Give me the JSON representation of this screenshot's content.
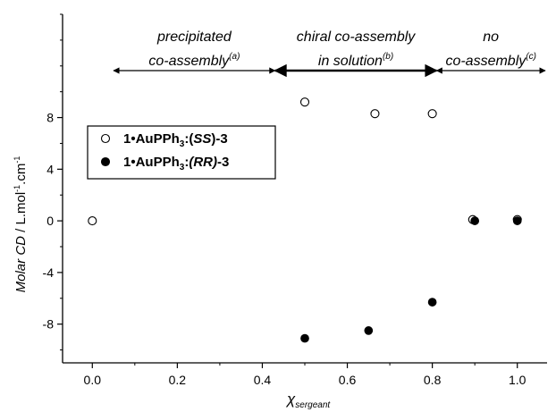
{
  "chart_data": {
    "type": "scatter",
    "xlim": [
      -0.07,
      1.07
    ],
    "ylim": [
      -11,
      16
    ],
    "x_ticks": [
      0.0,
      0.2,
      0.4,
      0.6,
      0.8,
      1.0
    ],
    "x_tick_labels": [
      "0.0",
      "0.2",
      "0.4",
      "0.6",
      "0.8",
      "1.0"
    ],
    "y_ticks": [
      -8,
      -4,
      0,
      4,
      8
    ],
    "y_tick_labels": [
      "-8",
      "-4",
      "0",
      "4",
      "8"
    ],
    "y_minor_step": 2,
    "x_minor_step": 0.1,
    "xlabel_main": "χ",
    "xlabel_sub": "sergeant",
    "ylabel_italic": "Molar CD",
    "ylabel_rest": " / L.mol",
    "ylabel_sup1": "-1",
    "ylabel_mid": ".cm",
    "ylabel_sup2": "-1",
    "series": [
      {
        "marker": "open-circle",
        "legend_prefix": "1•AuPPh",
        "legend_sub": "3",
        "legend_mid": ":(",
        "legend_bold_italic": "SS",
        "legend_suffix": ")-3",
        "points": [
          [
            0.0,
            0.0
          ],
          [
            0.5,
            9.2
          ],
          [
            0.665,
            8.3
          ],
          [
            0.8,
            8.3
          ],
          [
            0.895,
            0.1
          ],
          [
            1.0,
            0.1
          ]
        ]
      },
      {
        "marker": "filled-circle",
        "legend_prefix": "1•AuPPh",
        "legend_sub": "3",
        "legend_mid": ":",
        "legend_bold_italic": "(RR)",
        "legend_suffix": "-3",
        "points": [
          [
            0.5,
            -9.1
          ],
          [
            0.65,
            -8.5
          ],
          [
            0.8,
            -6.3
          ],
          [
            0.9,
            0.0
          ],
          [
            1.0,
            0.0
          ]
        ]
      }
    ],
    "annotations": [
      {
        "line1": "precipitated",
        "line2": "co-assembly",
        "sup": "(a)",
        "x_from": 0.05,
        "x_to": 0.43,
        "bold": false
      },
      {
        "line1": "chiral co-assembly",
        "line2": "in solution",
        "sup": "(b)",
        "x_from": 0.43,
        "x_to": 0.81,
        "bold": true
      },
      {
        "line1": "no",
        "line2": "co-assembly",
        "sup": "(c)",
        "x_from": 0.81,
        "x_to": 1.07,
        "bold": false
      }
    ],
    "legend_position": "upper-left",
    "grid": false
  }
}
